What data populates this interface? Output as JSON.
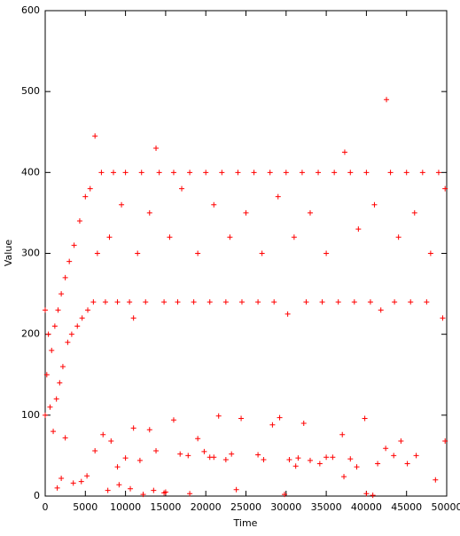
{
  "chart_data": {
    "type": "scatter",
    "xlabel": "Time",
    "ylabel": "Value",
    "color": "#ff0000",
    "x": [
      0,
      0,
      200,
      400,
      600,
      800,
      1000,
      1200,
      1400,
      1600,
      1800,
      2000,
      2200,
      2500,
      2800,
      3000,
      3300,
      3600,
      4000,
      4300,
      4600,
      5000,
      5300,
      5600,
      6000,
      6200,
      6500,
      7000,
      7500,
      8000,
      8500,
      9000,
      9500,
      10000,
      10500,
      11000,
      11500,
      12000,
      12500,
      13000,
      13800,
      14200,
      14800,
      15500,
      16000,
      16500,
      17000,
      18000,
      18500,
      19000,
      20000,
      20500,
      21000,
      22000,
      22500,
      23000,
      24000,
      24500,
      25000,
      26000,
      26500,
      27000,
      28000,
      28500,
      29000,
      30000,
      30200,
      31000,
      32000,
      32500,
      33000,
      34000,
      34500,
      35000,
      36000,
      36500,
      37300,
      38000,
      38500,
      39000,
      40000,
      40500,
      41000,
      41800,
      42500,
      43000,
      43500,
      44000,
      45000,
      45500,
      46000,
      47000,
      47500,
      48000,
      49000,
      49500,
      49800,
      1500,
      2000,
      2500,
      3500,
      4500,
      5200,
      6200,
      7200,
      7800,
      8200,
      9000,
      9200,
      10000,
      10600,
      11000,
      11800,
      12200,
      13000,
      13500,
      13800,
      14800,
      15000,
      16000,
      16800,
      17800,
      18000,
      19000,
      19800,
      20500,
      21000,
      21600,
      22500,
      23200,
      23800,
      24400,
      26500,
      27200,
      28300,
      29200,
      29800,
      30400,
      31200,
      31500,
      32200,
      33000,
      34200,
      35000,
      35800,
      37000,
      37200,
      38000,
      38800,
      39800,
      40000,
      40800,
      41400,
      42400,
      43400,
      44300,
      45100,
      46200,
      48600,
      49800
    ],
    "values": [
      100,
      230,
      150,
      200,
      110,
      180,
      80,
      210,
      120,
      230,
      140,
      250,
      160,
      270,
      190,
      290,
      200,
      310,
      210,
      340,
      220,
      370,
      230,
      380,
      240,
      445,
      300,
      400,
      240,
      320,
      400,
      240,
      360,
      400,
      240,
      220,
      300,
      400,
      240,
      350,
      430,
      400,
      240,
      320,
      400,
      240,
      380,
      400,
      240,
      300,
      400,
      240,
      360,
      400,
      240,
      320,
      400,
      240,
      350,
      400,
      240,
      300,
      400,
      240,
      370,
      400,
      225,
      320,
      400,
      240,
      350,
      400,
      240,
      300,
      400,
      240,
      425,
      400,
      240,
      330,
      400,
      240,
      360,
      230,
      490,
      400,
      240,
      320,
      400,
      240,
      350,
      400,
      240,
      300,
      400,
      220,
      380,
      10,
      22,
      72,
      16,
      18,
      25,
      56,
      76,
      7,
      68,
      36,
      14,
      47,
      9,
      84,
      44,
      2,
      82,
      7,
      56,
      4,
      5,
      94,
      52,
      50,
      3,
      71,
      55,
      48,
      48,
      99,
      45,
      52,
      8,
      96,
      51,
      45,
      88,
      97,
      2,
      45,
      37,
      47,
      90,
      44,
      40,
      48,
      48,
      76,
      24,
      46,
      36,
      96,
      3,
      1,
      40,
      59,
      50,
      68,
      40,
      50,
      20,
      68
    ],
    "xlim": [
      0,
      50000
    ],
    "xticks": [
      0,
      5000,
      10000,
      15000,
      20000,
      25000,
      30000,
      35000,
      40000,
      45000,
      50000
    ],
    "ylim": [
      0,
      600
    ],
    "yticks": [
      0,
      100,
      200,
      300,
      400,
      500,
      600
    ]
  }
}
